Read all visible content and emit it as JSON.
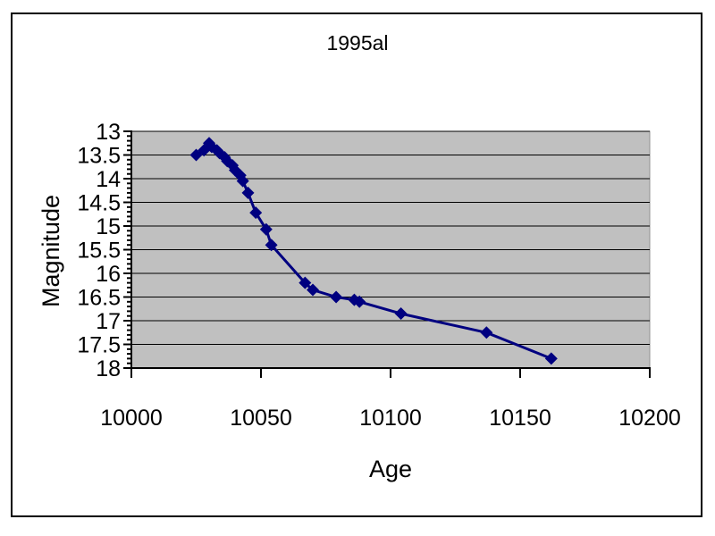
{
  "chart_data": {
    "type": "line",
    "title": "1995al",
    "xlabel": "Age",
    "ylabel": "Magnitude",
    "xlim": [
      10000,
      10200
    ],
    "ylim": [
      13,
      18
    ],
    "y_axis_reversed": true,
    "x_ticks": [
      "10000",
      "10050",
      "10100",
      "10150",
      "10200"
    ],
    "y_ticks": [
      "13",
      "13.5",
      "14",
      "14.5",
      "15",
      "15.5",
      "16",
      "16.5",
      "17",
      "17.5",
      "18"
    ],
    "y_minor_tick_step": 0.1,
    "grid": "horizontal major gridlines",
    "legend": "none",
    "plot_bg_color": "#c0c0c0",
    "gridline_color": "#000000",
    "axis_color": "#000000",
    "series": [
      {
        "name": "1995al",
        "color": "#000080",
        "marker": "diamond",
        "points": [
          [
            10025,
            13.5
          ],
          [
            10028,
            13.4
          ],
          [
            10030,
            13.25
          ],
          [
            10031,
            13.33
          ],
          [
            10033,
            13.4
          ],
          [
            10034,
            13.46
          ],
          [
            10036,
            13.55
          ],
          [
            10037,
            13.63
          ],
          [
            10039,
            13.72
          ],
          [
            10040,
            13.82
          ],
          [
            10042,
            13.93
          ],
          [
            10043,
            14.05
          ],
          [
            10045,
            14.3
          ],
          [
            10048,
            14.72
          ],
          [
            10052,
            15.07
          ],
          [
            10054,
            15.4
          ],
          [
            10067,
            16.2
          ],
          [
            10070,
            16.35
          ],
          [
            10079,
            16.5
          ],
          [
            10086,
            16.56
          ],
          [
            10088,
            16.6
          ],
          [
            10104,
            16.85
          ],
          [
            10137,
            17.25
          ],
          [
            10162,
            17.8
          ]
        ]
      }
    ]
  }
}
